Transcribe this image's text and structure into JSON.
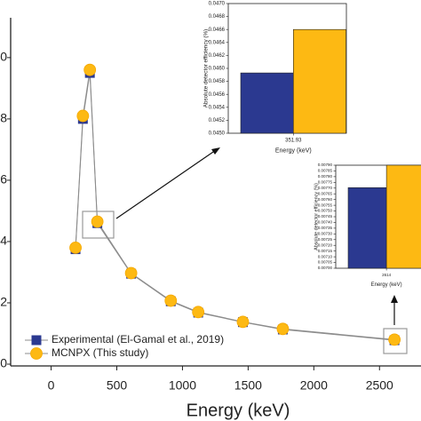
{
  "chart_data": [
    {
      "type": "line",
      "xlabel": "Energy (keV)",
      "x": [
        186,
        242,
        295,
        352,
        609,
        911,
        1120,
        1460,
        1764,
        2614
      ],
      "series": [
        {
          "name": "Experimental (El-Gamal et al., 2019)",
          "color": "#2b3990",
          "marker": "square",
          "values": [
            3.75,
            8.0,
            9.5,
            4.6,
            2.95,
            2.05,
            1.68,
            1.37,
            1.13,
            0.78
          ]
        },
        {
          "name": "MCNPX (This study)",
          "color": "#fdb913",
          "marker": "circle",
          "values": [
            3.8,
            8.1,
            9.6,
            4.65,
            2.97,
            2.07,
            1.7,
            1.38,
            1.15,
            0.8
          ]
        }
      ],
      "line_color": "#8c8c8c",
      "xlim": [
        -308,
        2816
      ],
      "xticks": [
        0,
        500,
        1000,
        1500,
        2000,
        2500
      ],
      "ylim": [
        0,
        11.3
      ],
      "yticks": [
        0,
        2,
        4,
        6,
        8,
        10
      ],
      "legend": "lower left"
    },
    {
      "type": "bar",
      "xlabel": "Energy (keV)",
      "ylabel": "Absolute detector efficiency (%)",
      "categories": [
        "351.93"
      ],
      "series": [
        {
          "color": "#2b3990",
          "values": [
            0.04593
          ]
        },
        {
          "color": "#fdb913",
          "values": [
            0.0466
          ]
        }
      ],
      "ylim": [
        0.045,
        0.047
      ],
      "yticks": [
        {
          "value": 0.045,
          "label": "0.0450"
        },
        0.0452,
        0.0454,
        0.0456,
        0.0458,
        {
          "value": 0.046,
          "label": "0.0460"
        },
        0.0462,
        0.0464,
        0.0466,
        0.0468,
        {
          "value": 0.047,
          "label": "0.0470"
        }
      ]
    },
    {
      "type": "bar",
      "xlabel": "Energy (keV)",
      "ylabel": "Absolute detector efficiency (%)",
      "categories": [
        "2614"
      ],
      "series": [
        {
          "color": "#2b3990",
          "values": [
            0.007704
          ]
        },
        {
          "color": "#fdb913",
          "values": [
            0.0079
          ]
        }
      ],
      "ylim": [
        0.007,
        0.0079
      ],
      "yticks": [
        {
          "value": 0.007,
          "label": "0.00700"
        },
        0.00705,
        {
          "value": 0.0071,
          "label": "0.00710"
        },
        0.00715,
        {
          "value": 0.0072,
          "label": "0.00720"
        },
        0.00725,
        {
          "value": 0.0073,
          "label": "0.00730"
        },
        0.00735,
        {
          "value": 0.0074,
          "label": "0.00740"
        },
        0.00745,
        {
          "value": 0.0075,
          "label": "0.00750"
        },
        0.00755,
        {
          "value": 0.0076,
          "label": "0.00760"
        },
        0.00765,
        {
          "value": 0.0077,
          "label": "0.00770"
        },
        0.00775,
        {
          "value": 0.0078,
          "label": "0.00780"
        },
        0.00785,
        {
          "value": 0.0079,
          "label": "0.00790"
        }
      ]
    }
  ]
}
